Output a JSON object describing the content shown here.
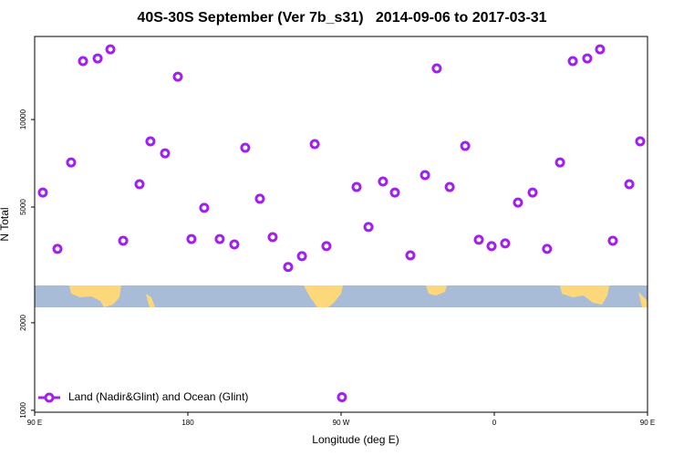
{
  "chart_data": {
    "type": "scatter",
    "title": "40S-30S September (Ver 7b_s31)   2014-09-06 to 2017-03-31",
    "x_label": "Longitude (deg E)",
    "y_label": "N Total",
    "log_y": true,
    "legend_position": "bottom-left",
    "xlim": [
      90,
      450
    ],
    "xticks": [
      {
        "value": 90,
        "label": "90 E"
      },
      {
        "value": 180,
        "label": "180"
      },
      {
        "value": 270,
        "label": "90 W"
      },
      {
        "value": 360,
        "label": "0"
      },
      {
        "value": 450,
        "label": "90 E"
      }
    ],
    "xticks_extra": [],
    "ylim": [
      985,
      19300
    ],
    "yticks": [
      1000,
      2000,
      5000,
      10000
    ],
    "series": [
      {
        "name": "Land (Nadir&Glint) and Ocean (Glint)",
        "color": "#a020f0",
        "x": [
          94.8,
          103.4,
          111.4,
          118.4,
          127,
          134.5,
          142,
          151.6,
          158,
          166.6,
          174.1,
          182.1,
          189.6,
          198.7,
          207.3,
          213.7,
          222.3,
          229.8,
          238.9,
          247,
          254.5,
          261.4,
          270.5,
          279.1,
          286.1,
          294.6,
          301.6,
          310.7,
          319.3,
          326.2,
          333.8,
          342.9,
          350.9,
          358.4,
          366.4,
          373.9,
          382.5,
          391,
          398.6,
          406.1,
          414.6,
          422.1,
          429.6,
          439.3,
          445.7
        ],
        "values": [
          5610,
          3590,
          7120,
          15880,
          16220,
          17430,
          3830,
          5990,
          8410,
          7650,
          14030,
          3880,
          4970,
          3880,
          3720,
          8000,
          5340,
          3940,
          3110,
          3390,
          8230,
          3670,
          1110,
          5860,
          4270,
          6120,
          5610,
          3410,
          6440,
          14990,
          5860,
          8110,
          3860,
          3670,
          3750,
          5180,
          5610,
          3590,
          7120,
          15880,
          16220,
          17430,
          3830,
          5990,
          8410
        ]
      }
    ]
  }
}
